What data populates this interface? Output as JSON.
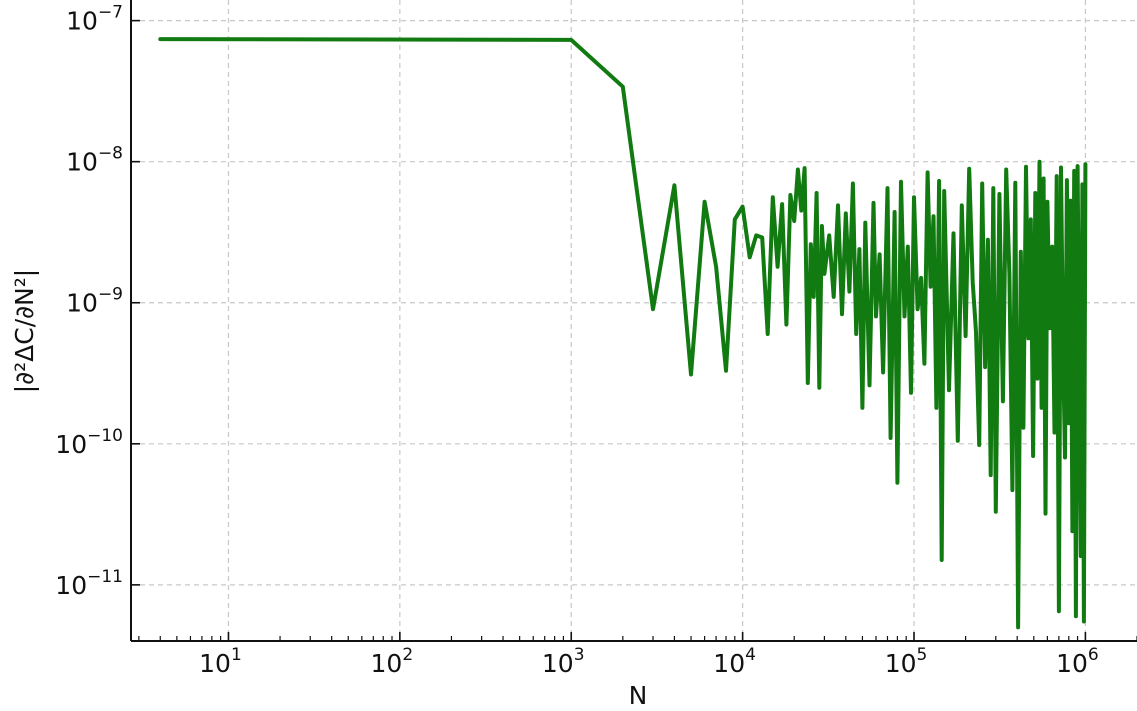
{
  "chart_data": {
    "type": "line",
    "title": "",
    "xlabel": "N",
    "ylabel": "|∂²ΔC/∂N²|",
    "xscale": "log",
    "yscale": "log",
    "xlim": [
      2.7,
      2000000
    ],
    "ylim": [
      4e-12,
      1.4e-07
    ],
    "grid": true,
    "legend": "none",
    "color": "#117a11",
    "xticks": [
      {
        "base": "10",
        "exp": "1"
      },
      {
        "base": "10",
        "exp": "2"
      },
      {
        "base": "10",
        "exp": "3"
      },
      {
        "base": "10",
        "exp": "4"
      },
      {
        "base": "10",
        "exp": "5"
      },
      {
        "base": "10",
        "exp": "6"
      }
    ],
    "yticks": [
      {
        "base": "10",
        "exp": "−7"
      },
      {
        "base": "10",
        "exp": "−8"
      },
      {
        "base": "10",
        "exp": "−9"
      },
      {
        "base": "10",
        "exp": "−10"
      },
      {
        "base": "10",
        "exp": "−11"
      }
    ],
    "series": [
      {
        "x": [
          4,
          1000,
          2000,
          3000,
          4000,
          5000,
          6000,
          7000,
          8000,
          9000,
          10000,
          11000,
          12000,
          13000,
          14000,
          15000,
          16000,
          17000,
          18000,
          19000,
          20000,
          21000,
          22000,
          23000,
          24000,
          25000,
          26000,
          27000,
          28000,
          29000,
          30000,
          32000,
          34000,
          36000,
          38000,
          40000,
          42000,
          44000,
          46000,
          48000,
          50000,
          52000,
          55000,
          58000,
          60000,
          63000,
          66000,
          70000,
          73000,
          77000,
          80000,
          84000,
          88000,
          92000,
          96000,
          100000,
          105000,
          110000,
          115000,
          120000,
          125000,
          130000,
          135000,
          140000,
          145000,
          150000,
          160000,
          170000,
          180000,
          190000,
          200000,
          210000,
          220000,
          230000,
          240000,
          250000,
          260000,
          270000,
          280000,
          290000,
          300000,
          315000,
          330000,
          345000,
          360000,
          375000,
          390000,
          405000,
          420000,
          435000,
          450000,
          465000,
          480000,
          495000,
          510000,
          525000,
          540000,
          555000,
          570000,
          585000,
          600000,
          620000,
          640000,
          660000,
          680000,
          700000,
          720000,
          740000,
          760000,
          780000,
          800000,
          820000,
          840000,
          860000,
          880000,
          900000,
          920000,
          940000,
          960000,
          980000,
          1000000
        ],
        "y": [
          7.4e-08,
          7.3e-08,
          3.4e-08,
          9e-10,
          6.8e-09,
          3.1e-10,
          5.2e-09,
          1.8e-09,
          3.3e-10,
          3.9e-09,
          4.8e-09,
          2.1e-09,
          3e-09,
          2.9e-09,
          6e-10,
          5.6e-09,
          1.8e-09,
          5e-09,
          7e-10,
          5.8e-09,
          3.8e-09,
          8.8e-09,
          4.5e-09,
          9e-09,
          2.7e-10,
          2.6e-09,
          1.1e-09,
          6e-09,
          2.5e-10,
          3.5e-09,
          1.6e-09,
          3e-09,
          1.1e-09,
          4.9e-09,
          8.3e-10,
          4.3e-09,
          1.2e-09,
          7e-09,
          6e-10,
          2.4e-09,
          1.8e-10,
          3.7e-09,
          2.6e-10,
          5.1e-09,
          8e-10,
          2.2e-09,
          3.2e-10,
          6.5e-09,
          1.1e-10,
          4.4e-09,
          5.3e-11,
          7.2e-09,
          8e-10,
          2.5e-09,
          2.3e-10,
          5.6e-09,
          9e-10,
          1.5e-09,
          3.7e-10,
          8.4e-09,
          1.3e-09,
          4.1e-09,
          1.8e-10,
          7.3e-09,
          1.5e-11,
          6.2e-09,
          2.4e-10,
          3.1e-09,
          1.05e-10,
          4.9e-09,
          5.8e-10,
          8.9e-09,
          1.4e-09,
          6.2e-10,
          9.8e-11,
          7e-09,
          3.5e-10,
          2.8e-09,
          6e-11,
          6.5e-09,
          3.3e-11,
          5.9e-09,
          2e-10,
          8.8e-09,
          1.6e-09,
          4.7e-11,
          7.1e-09,
          5e-12,
          2.3e-09,
          1.3e-10,
          9.2e-09,
          5.6e-10,
          3.9e-09,
          8.2e-11,
          6e-09,
          2.9e-10,
          1e-08,
          1.8e-10,
          7.6e-09,
          3.2e-11,
          5.2e-09,
          6.6e-10,
          2.5e-09,
          1.2e-10,
          7.9e-09,
          6.5e-12,
          9.1e-09,
          4.9e-10,
          8e-11,
          7.4e-09,
          1.4e-10,
          5.3e-09,
          2.4e-11,
          8.6e-09,
          6e-12,
          9.3e-09,
          3.9e-10,
          1.6e-11,
          6.9e-09,
          5.5e-12,
          9.6e-09
        ]
      }
    ]
  }
}
